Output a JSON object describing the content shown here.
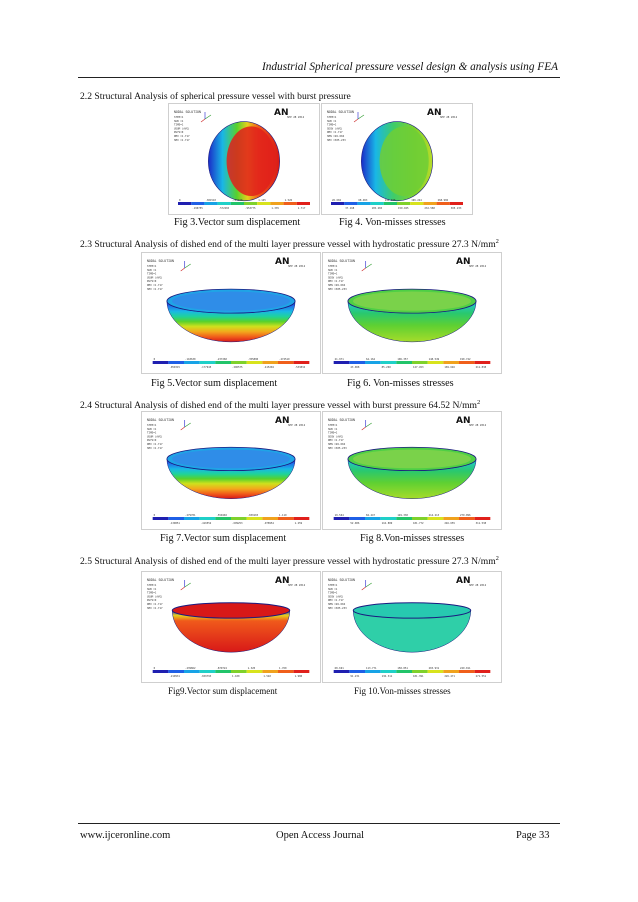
{
  "header": {
    "running_title": "Industrial Spherical pressure vessel design & analysis using FEA"
  },
  "sections": [
    {
      "heading": "2.2 Structural Analysis of spherical pressure vessel with burst pressure",
      "sup": ""
    },
    {
      "heading": "2.3 Structural Analysis of dished end of the multi layer pressure vessel with hydrostatic pressure 27.3 N/mm",
      "sup": "2"
    },
    {
      "heading": "2.4 Structural Analysis of dished end of the multi layer pressure vessel with burst  pressure 64.52 N/mm",
      "sup": "2"
    },
    {
      "heading": "2.5 Structural Analysis of dished end of the multi layer pressure vessel with hydrostatic pressure 27.3 N/mm",
      "sup": "2"
    }
  ],
  "figures": [
    {
      "caption": "Fig 3.Vector sum displacement",
      "kind": "disp",
      "shape": "sphere",
      "scale": [
        "0",
        ".190755",
        ".381510",
        ".572265",
        ".763020",
        ".953775",
        "1.145",
        "1.335",
        "1.526",
        "1.717"
      ]
    },
    {
      "caption": "Fig 4. Von-misses stresses",
      "kind": "vm",
      "shape": "sphere",
      "scale": [
        "26.604",
        "37.168",
        "68.963",
        "105.265",
        "141.588",
        "159.925",
        "196.244",
        "232.580",
        "268.906",
        "305.233"
      ]
    },
    {
      "caption": "Fig 5.Vector sum displacement",
      "kind": "disp",
      "shape": "dish",
      "scale": [
        "0",
        ".059315",
        ".118630",
        ".177945",
        ".237260",
        ".296575",
        ".355890",
        ".415204",
        ".474519",
        ".533834"
      ]
    },
    {
      "caption": "Fig 6. Von-misses stresses",
      "kind": "vm",
      "shape": "dish",
      "scale": [
        "21.971",
        "43.068",
        "64.164",
        "85.260",
        "106.357",
        "127.453",
        "148.549",
        "169.646",
        "190.742",
        "211.838"
      ]
    },
    {
      "caption": "Fig 7.Vector sum displacement",
      "kind": "disp",
      "shape": "dish",
      "scale": [
        "0",
        ".139851",
        ".279701",
        ".419552",
        ".559402",
        ".699253",
        ".839103",
        ".978954",
        "1.119",
        "1.259"
      ]
    },
    {
      "caption": "Fig 8.Von-misses stresses",
      "kind": "vm",
      "shape": "dish",
      "scale": [
        "19.564",
        "52.006",
        "84.447",
        "116.889",
        "149.330",
        "181.772",
        "214.213",
        "246.655",
        "279.096",
        "311.538"
      ]
    },
    {
      "caption": "Fig9.Vector sum displacement",
      "kind": "disp",
      "shape": "bowl",
      "scale": [
        "0",
        ".219931",
        ".439862",
        ".659793",
        ".879724",
        "1.100",
        "1.320",
        "1.540",
        "1.760",
        "1.980"
      ]
    },
    {
      "caption": "Fig 10.Von-misses stresses",
      "kind": "vm",
      "shape": "bowl",
      "scale": [
        "68.691",
        "91.231",
        "113.771",
        "136.311",
        "158.851",
        "181.391",
        "203.931",
        "226.471",
        "249.011",
        "271.551"
      ]
    }
  ],
  "ansys": {
    "logo": "AN",
    "title": "NODAL SOLUTION",
    "lines_disp": [
      "STEP=1",
      "SUB =1",
      "TIME=1",
      "USUM (AVG)",
      "RSYS=0",
      "DMX =1.717",
      "SMX =1.717"
    ],
    "lines_vm": [
      "STEP=1",
      "SUB =1",
      "TIME=1",
      "SEQV (AVG)",
      "DMX =1.717",
      "SMN =26.604",
      "SMX =305.233"
    ],
    "date": "SEP 28 2012"
  },
  "footer": {
    "left": "www.ijceronline.com",
    "center": "Open Access Journal",
    "right": "Page 33"
  }
}
